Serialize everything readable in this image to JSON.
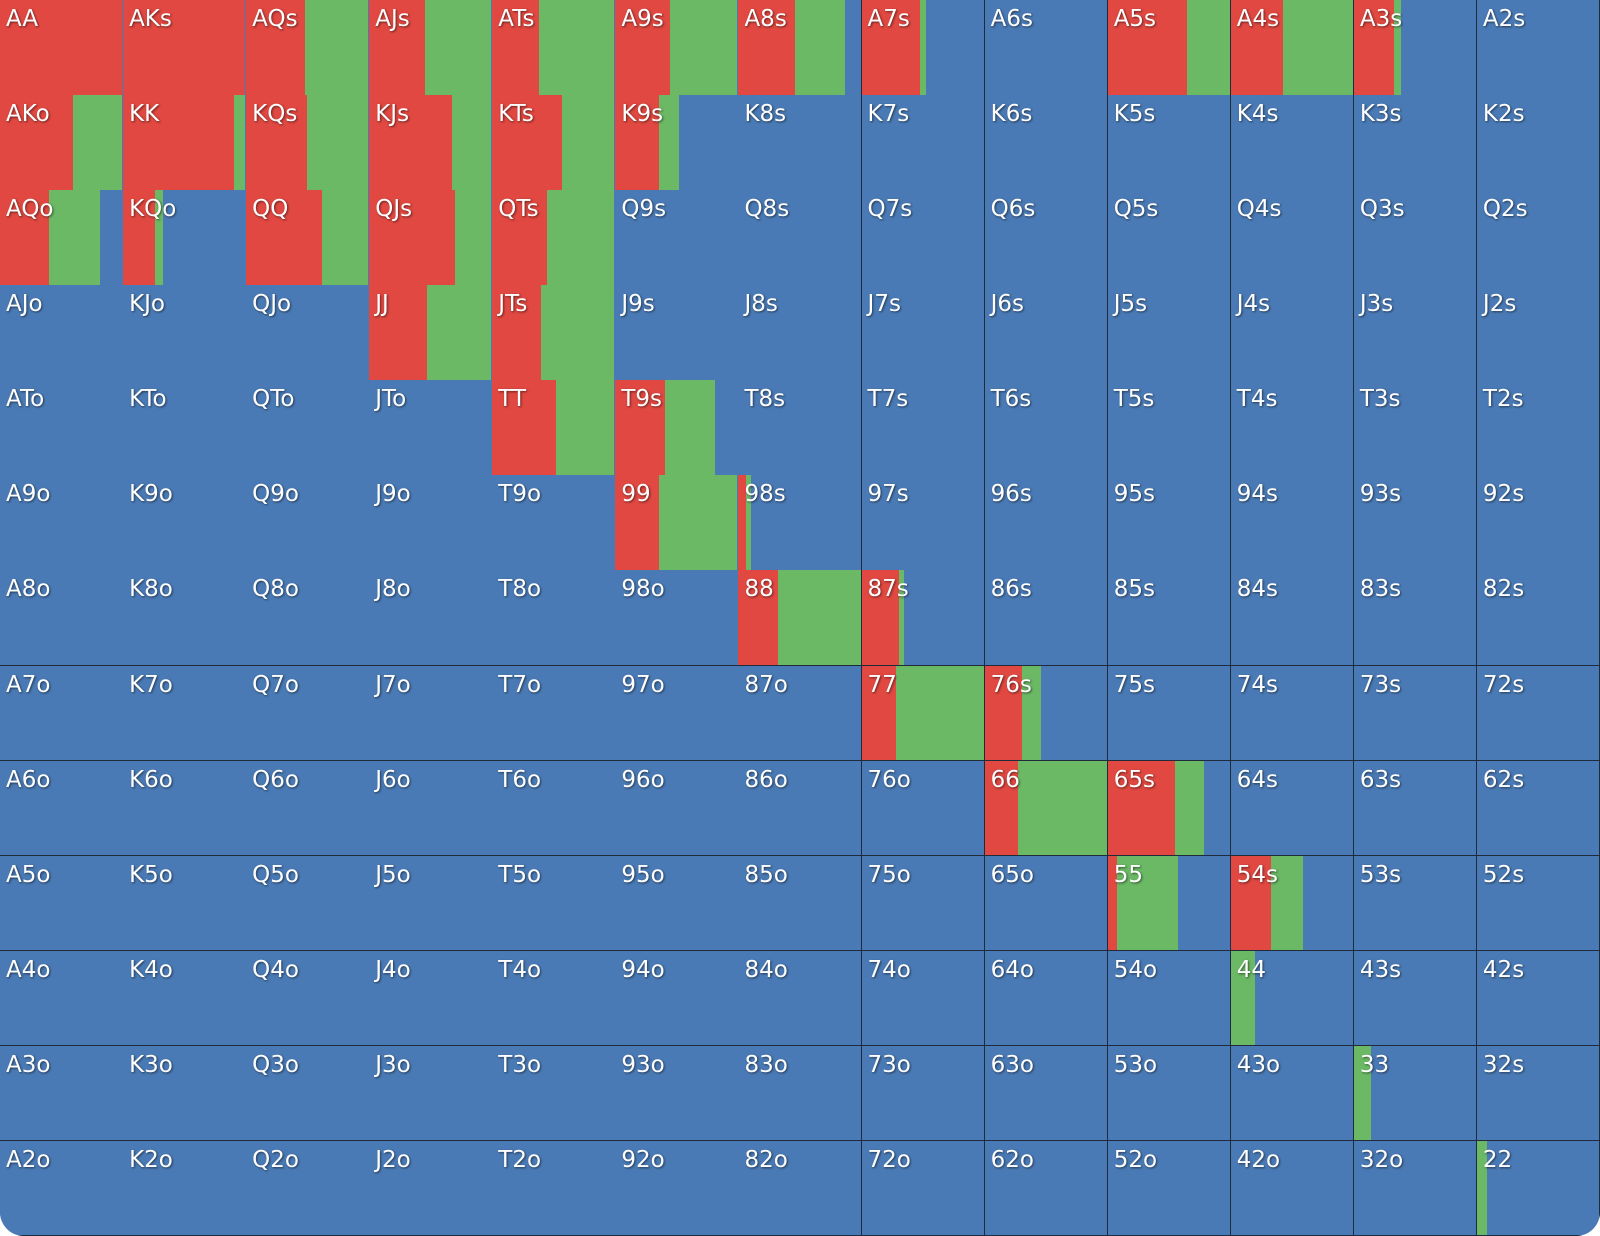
{
  "labels": [
    [
      "AA",
      "AKs",
      "AQs",
      "AJs",
      "ATs",
      "A9s",
      "A8s",
      "A7s",
      "A6s",
      "A5s",
      "A4s",
      "A3s",
      "A2s"
    ],
    [
      "AKo",
      "KK",
      "KQs",
      "KJs",
      "KTs",
      "K9s",
      "K8s",
      "K7s",
      "K6s",
      "K5s",
      "K4s",
      "K3s",
      "K2s"
    ],
    [
      "AQo",
      "KQo",
      "QQ",
      "QJs",
      "QTs",
      "Q9s",
      "Q8s",
      "Q7s",
      "Q6s",
      "Q5s",
      "Q4s",
      "Q3s",
      "Q2s"
    ],
    [
      "AJo",
      "KJo",
      "QJo",
      "JJ",
      "JTs",
      "J9s",
      "J8s",
      "J7s",
      "J6s",
      "J5s",
      "J4s",
      "J3s",
      "J2s"
    ],
    [
      "ATo",
      "KTo",
      "QTo",
      "JTo",
      "TT",
      "T9s",
      "T8s",
      "T7s",
      "T6s",
      "T5s",
      "T4s",
      "T3s",
      "T2s"
    ],
    [
      "A9o",
      "K9o",
      "Q9o",
      "J9o",
      "T9o",
      "99",
      "98s",
      "97s",
      "96s",
      "95s",
      "94s",
      "93s",
      "92s"
    ],
    [
      "A8o",
      "K8o",
      "Q8o",
      "J8o",
      "T8o",
      "98o",
      "88",
      "87s",
      "86s",
      "85s",
      "84s",
      "83s",
      "82s"
    ],
    [
      "A7o",
      "K7o",
      "Q7o",
      "J7o",
      "T7o",
      "97o",
      "87o",
      "77",
      "76s",
      "75s",
      "74s",
      "73s",
      "72s"
    ],
    [
      "A6o",
      "K6o",
      "Q6o",
      "J6o",
      "T6o",
      "96o",
      "86o",
      "76o",
      "66",
      "65s",
      "64s",
      "63s",
      "62s"
    ],
    [
      "A5o",
      "K5o",
      "Q5o",
      "J5o",
      "T5o",
      "95o",
      "85o",
      "75o",
      "65o",
      "55",
      "54s",
      "53s",
      "52s"
    ],
    [
      "A4o",
      "K4o",
      "Q4o",
      "J4o",
      "T4o",
      "94o",
      "84o",
      "74o",
      "64o",
      "54o",
      "44",
      "43s",
      "42s"
    ],
    [
      "A3o",
      "K3o",
      "Q3o",
      "J3o",
      "T3o",
      "93o",
      "83o",
      "73o",
      "63o",
      "53o",
      "43o",
      "33",
      "32s"
    ],
    [
      "A2o",
      "K2o",
      "Q2o",
      "J2o",
      "T2o",
      "92o",
      "82o",
      "72o",
      "62o",
      "52o",
      "42o",
      "32o",
      "22"
    ]
  ],
  "raise": [
    [
      100,
      100,
      48,
      46,
      38,
      45,
      46,
      48,
      0,
      65,
      43,
      33,
      0
    ],
    [
      60,
      91,
      50,
      68,
      57,
      36,
      0,
      0,
      0,
      0,
      0,
      0,
      0
    ],
    [
      40,
      26,
      62,
      70,
      45,
      0,
      0,
      0,
      0,
      0,
      0,
      0,
      0
    ],
    [
      0,
      0,
      0,
      47,
      40,
      0,
      0,
      0,
      0,
      0,
      0,
      0,
      0
    ],
    [
      0,
      0,
      0,
      0,
      52,
      41,
      0,
      0,
      0,
      0,
      0,
      0,
      0
    ],
    [
      0,
      0,
      0,
      0,
      0,
      36,
      6,
      0,
      0,
      0,
      0,
      0,
      0
    ],
    [
      0,
      0,
      0,
      0,
      0,
      0,
      32,
      31,
      0,
      0,
      0,
      0,
      0
    ],
    [
      0,
      0,
      0,
      0,
      0,
      0,
      0,
      28,
      31,
      0,
      0,
      0,
      0
    ],
    [
      0,
      0,
      0,
      0,
      0,
      0,
      0,
      0,
      27,
      55,
      0,
      0,
      0
    ],
    [
      0,
      0,
      0,
      0,
      0,
      0,
      0,
      0,
      0,
      8,
      33,
      0,
      0
    ],
    [
      0,
      0,
      0,
      0,
      0,
      0,
      0,
      0,
      0,
      0,
      0,
      0,
      0
    ],
    [
      0,
      0,
      0,
      0,
      0,
      0,
      0,
      0,
      0,
      0,
      0,
      0,
      0
    ],
    [
      0,
      0,
      0,
      0,
      0,
      0,
      0,
      0,
      0,
      0,
      0,
      0,
      0
    ]
  ],
  "call": [
    [
      0,
      0,
      52,
      54,
      62,
      55,
      41,
      5,
      0,
      35,
      57,
      6,
      0
    ],
    [
      40,
      9,
      50,
      32,
      43,
      16,
      0,
      0,
      0,
      0,
      0,
      0,
      0
    ],
    [
      42,
      7,
      38,
      30,
      55,
      0,
      0,
      0,
      0,
      0,
      0,
      0,
      0
    ],
    [
      0,
      0,
      0,
      53,
      60,
      0,
      0,
      0,
      0,
      0,
      0,
      0,
      0
    ],
    [
      0,
      0,
      0,
      0,
      48,
      41,
      0,
      0,
      0,
      0,
      0,
      0,
      0
    ],
    [
      0,
      0,
      0,
      0,
      0,
      64,
      4,
      0,
      0,
      0,
      0,
      0,
      0
    ],
    [
      0,
      0,
      0,
      0,
      0,
      0,
      68,
      4,
      0,
      0,
      0,
      0,
      0
    ],
    [
      0,
      0,
      0,
      0,
      0,
      0,
      0,
      72,
      15,
      0,
      0,
      0,
      0
    ],
    [
      0,
      0,
      0,
      0,
      0,
      0,
      0,
      0,
      73,
      24,
      0,
      0,
      0
    ],
    [
      0,
      0,
      0,
      0,
      0,
      0,
      0,
      0,
      0,
      50,
      26,
      0,
      0
    ],
    [
      0,
      0,
      0,
      0,
      0,
      0,
      0,
      0,
      0,
      0,
      20,
      0,
      0
    ],
    [
      0,
      0,
      0,
      0,
      0,
      0,
      0,
      0,
      0,
      0,
      0,
      14,
      0
    ],
    [
      0,
      0,
      0,
      0,
      0,
      0,
      0,
      0,
      0,
      0,
      0,
      0,
      8
    ]
  ]
}
